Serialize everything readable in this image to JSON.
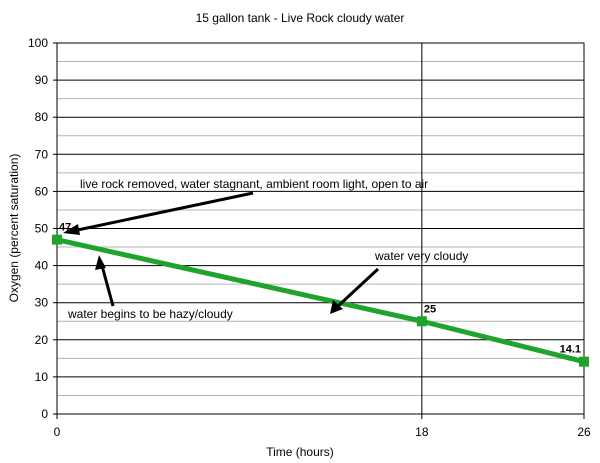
{
  "chart_data": {
    "type": "line",
    "title": "15 gallon tank - Live Rock cloudy water",
    "xlabel": "Time (hours)",
    "ylabel": "Oxygen (percent saturation)",
    "x": [
      0,
      18,
      26
    ],
    "x_tick_labels": [
      "0",
      "18",
      "26"
    ],
    "xlim": [
      0,
      26
    ],
    "ylim": [
      0,
      100
    ],
    "y_ticks": [
      0,
      10,
      20,
      30,
      40,
      50,
      60,
      70,
      80,
      90,
      100
    ],
    "y_minor_step": 5,
    "grid": true,
    "series": [
      {
        "values": [
          47,
          25,
          14.1
        ],
        "data_labels": [
          "47",
          "25",
          "14.1"
        ],
        "color": "#1fa32a"
      }
    ],
    "annotations": [
      {
        "text": "live rock removed, water stagnant, ambient room light, open to air"
      },
      {
        "text": "water begins to be hazy/cloudy"
      },
      {
        "text": "water very cloudy"
      }
    ]
  }
}
